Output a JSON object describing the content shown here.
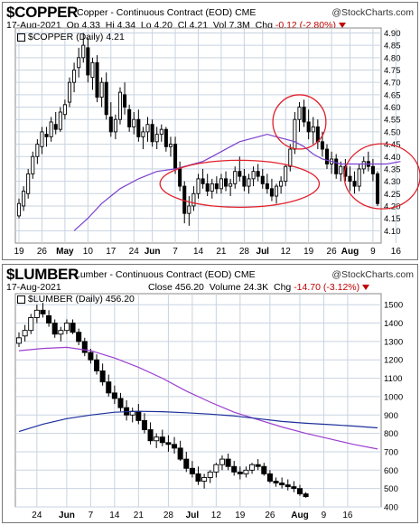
{
  "charts": [
    {
      "symbol": "$COPPER",
      "description": "Copper - Continuous Contract (EOD) CME",
      "watermark": "@StockCharts.com",
      "date": "17-Aug-2021",
      "open_label": "Op",
      "open": "4.33",
      "high_label": "Hi",
      "high": "4.34",
      "low_label": "Lo",
      "low": "4.20",
      "close_label": "Cl",
      "close": "4.21",
      "volume_label": "Vol",
      "volume": "7.3M",
      "change_label": "Chg",
      "change": "-0.12 (-2.80%)",
      "plot_title": "$COPPER (Daily) 4.21",
      "colors": {
        "up": "#000000",
        "down": "#000000",
        "ma50": "#7b3fd0",
        "circle": "#e0202a",
        "grid": "#c9d3e0"
      }
    },
    {
      "symbol": "$LUMBER",
      "description": "Lumber - Continuous Contract (EOD) CME",
      "watermark": "@StockCharts.com",
      "date": "17-Aug-2021",
      "close_label": "Close",
      "close": "456.20",
      "volume_label": "Volume",
      "volume": "24.3K",
      "change_label": "Chg",
      "change": "-14.70 (-3.12%)",
      "plot_title": "$LUMBER (Daily) 456.20",
      "colors": {
        "up": "#000000",
        "down": "#000000",
        "ma50": "#9a3fd0",
        "ma200": "#1c2f9a",
        "grid": "#c9d3e0"
      }
    }
  ],
  "chart_data": [
    {
      "type": "candlestick",
      "title": "$COPPER (Daily) 4.21",
      "ylim": [
        4.05,
        4.92
      ],
      "y_ticks": [
        "4.90",
        "4.85",
        "4.80",
        "4.75",
        "4.70",
        "4.65",
        "4.60",
        "4.55",
        "4.50",
        "4.45",
        "4.40",
        "4.35",
        "4.30",
        "4.25",
        "4.20",
        "4.15",
        "4.10"
      ],
      "x_ticks": [
        "19",
        "26",
        "May",
        "10",
        "17",
        "24",
        "Jun",
        "7",
        "14",
        "21",
        "28",
        "Jul",
        "12",
        "19",
        "26",
        "Aug",
        "9",
        "16"
      ],
      "x_tick_index": [
        0,
        5,
        10,
        15,
        20,
        25,
        29,
        34,
        39,
        44,
        49,
        53,
        58,
        63,
        68,
        72,
        77,
        82
      ],
      "candles": [
        [
          4.16,
          4.23,
          4.15,
          4.21
        ],
        [
          4.2,
          4.28,
          4.18,
          4.26
        ],
        [
          4.25,
          4.35,
          4.23,
          4.33
        ],
        [
          4.33,
          4.42,
          4.31,
          4.4
        ],
        [
          4.4,
          4.47,
          4.37,
          4.45
        ],
        [
          4.44,
          4.52,
          4.41,
          4.5
        ],
        [
          4.49,
          4.52,
          4.44,
          4.48
        ],
        [
          4.48,
          4.56,
          4.46,
          4.54
        ],
        [
          4.53,
          4.58,
          4.49,
          4.51
        ],
        [
          4.51,
          4.6,
          4.5,
          4.58
        ],
        [
          4.57,
          4.63,
          4.55,
          4.61
        ],
        [
          4.62,
          4.72,
          4.6,
          4.7
        ],
        [
          4.7,
          4.78,
          4.66,
          4.75
        ],
        [
          4.76,
          4.84,
          4.72,
          4.8
        ],
        [
          4.8,
          4.9,
          4.78,
          4.85
        ],
        [
          4.84,
          4.88,
          4.7,
          4.73
        ],
        [
          4.72,
          4.8,
          4.67,
          4.78
        ],
        [
          4.78,
          4.81,
          4.62,
          4.64
        ],
        [
          4.64,
          4.72,
          4.6,
          4.7
        ],
        [
          4.7,
          4.74,
          4.55,
          4.57
        ],
        [
          4.56,
          4.62,
          4.48,
          4.5
        ],
        [
          4.5,
          4.57,
          4.47,
          4.55
        ],
        [
          4.55,
          4.68,
          4.53,
          4.66
        ],
        [
          4.65,
          4.7,
          4.57,
          4.6
        ],
        [
          4.59,
          4.61,
          4.5,
          4.52
        ],
        [
          4.52,
          4.58,
          4.49,
          4.55
        ],
        [
          4.55,
          4.59,
          4.46,
          4.48
        ],
        [
          4.48,
          4.52,
          4.43,
          4.5
        ],
        [
          4.5,
          4.56,
          4.46,
          4.53
        ],
        [
          4.53,
          4.55,
          4.44,
          4.46
        ],
        [
          4.46,
          4.52,
          4.43,
          4.49
        ],
        [
          4.49,
          4.53,
          4.46,
          4.51
        ],
        [
          4.51,
          4.52,
          4.42,
          4.44
        ],
        [
          4.44,
          4.48,
          4.4,
          4.45
        ],
        [
          4.45,
          4.48,
          4.33,
          4.35
        ],
        [
          4.35,
          4.38,
          4.26,
          4.28
        ],
        [
          4.28,
          4.3,
          4.13,
          4.17
        ],
        [
          4.17,
          4.24,
          4.12,
          4.2
        ],
        [
          4.2,
          4.28,
          4.18,
          4.25
        ],
        [
          4.25,
          4.33,
          4.23,
          4.31
        ],
        [
          4.31,
          4.35,
          4.27,
          4.29
        ],
        [
          4.29,
          4.33,
          4.24,
          4.26
        ],
        [
          4.26,
          4.31,
          4.23,
          4.29
        ],
        [
          4.29,
          4.32,
          4.25,
          4.27
        ],
        [
          4.27,
          4.33,
          4.25,
          4.31
        ],
        [
          4.31,
          4.34,
          4.26,
          4.28
        ],
        [
          4.28,
          4.31,
          4.24,
          4.29
        ],
        [
          4.29,
          4.36,
          4.27,
          4.34
        ],
        [
          4.34,
          4.4,
          4.3,
          4.32
        ],
        [
          4.32,
          4.35,
          4.26,
          4.28
        ],
        [
          4.28,
          4.33,
          4.25,
          4.31
        ],
        [
          4.31,
          4.36,
          4.28,
          4.34
        ],
        [
          4.34,
          4.37,
          4.3,
          4.32
        ],
        [
          4.32,
          4.35,
          4.27,
          4.29
        ],
        [
          4.29,
          4.33,
          4.25,
          4.27
        ],
        [
          4.27,
          4.31,
          4.22,
          4.24
        ],
        [
          4.24,
          4.29,
          4.21,
          4.28
        ],
        [
          4.28,
          4.32,
          4.25,
          4.3
        ],
        [
          4.3,
          4.37,
          4.28,
          4.36
        ],
        [
          4.36,
          4.45,
          4.34,
          4.43
        ],
        [
          4.43,
          4.58,
          4.41,
          4.55
        ],
        [
          4.55,
          4.62,
          4.5,
          4.6
        ],
        [
          4.6,
          4.63,
          4.52,
          4.54
        ],
        [
          4.54,
          4.59,
          4.47,
          4.5
        ],
        [
          4.5,
          4.56,
          4.45,
          4.52
        ],
        [
          4.52,
          4.55,
          4.43,
          4.46
        ],
        [
          4.46,
          4.5,
          4.4,
          4.43
        ],
        [
          4.43,
          4.45,
          4.35,
          4.37
        ],
        [
          4.37,
          4.42,
          4.33,
          4.39
        ],
        [
          4.39,
          4.41,
          4.31,
          4.33
        ],
        [
          4.33,
          4.38,
          4.3,
          4.36
        ],
        [
          4.36,
          4.39,
          4.3,
          4.32
        ],
        [
          4.32,
          4.36,
          4.26,
          4.3
        ],
        [
          4.3,
          4.34,
          4.25,
          4.28
        ],
        [
          4.28,
          4.37,
          4.26,
          4.35
        ],
        [
          4.35,
          4.4,
          4.33,
          4.38
        ],
        [
          4.38,
          4.42,
          4.34,
          4.36
        ],
        [
          4.36,
          4.39,
          4.3,
          4.33
        ],
        [
          4.33,
          4.34,
          4.2,
          4.21
        ]
      ],
      "ma50": [
        [
          38,
          4.37
        ],
        [
          40,
          4.38
        ],
        [
          42,
          4.4
        ],
        [
          44,
          4.42
        ],
        [
          46,
          4.44
        ],
        [
          48,
          4.46
        ],
        [
          50,
          4.47
        ],
        [
          52,
          4.48
        ],
        [
          54,
          4.49
        ],
        [
          56,
          4.48
        ],
        [
          58,
          4.47
        ],
        [
          60,
          4.46
        ],
        [
          62,
          4.44
        ],
        [
          64,
          4.41
        ],
        [
          66,
          4.39
        ],
        [
          68,
          4.38
        ],
        [
          70,
          4.37
        ],
        [
          72,
          4.37
        ],
        [
          74,
          4.37
        ],
        [
          76,
          4.37
        ],
        [
          78,
          4.37
        ],
        [
          80,
          4.37
        ],
        [
          83,
          4.38
        ]
      ],
      "ma50_start_index": 37
    },
    {
      "type": "candlestick",
      "title": "$LUMBER (Daily) 456.20",
      "ylim": [
        400,
        1560
      ],
      "y_ticks": [
        "1500",
        "1400",
        "1300",
        "1200",
        "1100",
        "1000",
        "900",
        "800",
        "700",
        "600",
        "500",
        "400"
      ],
      "x_ticks": [
        "24",
        "Jun",
        "7",
        "14",
        "21",
        "28",
        "Jul",
        "12",
        "19",
        "26",
        "Aug",
        "9",
        "16"
      ],
      "x_tick_index": [
        3,
        8,
        12,
        16,
        20,
        25,
        29,
        33,
        37,
        42,
        47,
        51,
        55
      ],
      "candles": [
        [
          1290,
          1350,
          1270,
          1320
        ],
        [
          1330,
          1390,
          1300,
          1360
        ],
        [
          1360,
          1450,
          1340,
          1430
        ],
        [
          1430,
          1500,
          1400,
          1470
        ],
        [
          1470,
          1510,
          1430,
          1450
        ],
        [
          1440,
          1470,
          1380,
          1400
        ],
        [
          1400,
          1420,
          1320,
          1340
        ],
        [
          1340,
          1380,
          1300,
          1360
        ],
        [
          1360,
          1420,
          1340,
          1400
        ],
        [
          1400,
          1420,
          1340,
          1350
        ],
        [
          1350,
          1370,
          1280,
          1300
        ],
        [
          1300,
          1320,
          1220,
          1240
        ],
        [
          1240,
          1260,
          1180,
          1200
        ],
        [
          1200,
          1230,
          1120,
          1140
        ],
        [
          1140,
          1180,
          1060,
          1080
        ],
        [
          1080,
          1120,
          1000,
          1020
        ],
        [
          1020,
          1060,
          960,
          990
        ],
        [
          990,
          1020,
          920,
          940
        ],
        [
          940,
          980,
          870,
          900
        ],
        [
          900,
          940,
          860,
          920
        ],
        [
          920,
          960,
          850,
          870
        ],
        [
          870,
          910,
          800,
          820
        ],
        [
          820,
          860,
          740,
          760
        ],
        [
          760,
          800,
          720,
          780
        ],
        [
          780,
          820,
          730,
          750
        ],
        [
          750,
          790,
          700,
          740
        ],
        [
          740,
          780,
          690,
          720
        ],
        [
          720,
          760,
          650,
          660
        ],
        [
          660,
          700,
          590,
          610
        ],
        [
          610,
          650,
          560,
          580
        ],
        [
          580,
          620,
          520,
          540
        ],
        [
          540,
          580,
          500,
          560
        ],
        [
          560,
          600,
          530,
          590
        ],
        [
          590,
          640,
          560,
          630
        ],
        [
          630,
          680,
          600,
          660
        ],
        [
          660,
          690,
          600,
          620
        ],
        [
          620,
          650,
          570,
          590
        ],
        [
          590,
          620,
          550,
          580
        ],
        [
          580,
          620,
          560,
          600
        ],
        [
          600,
          640,
          580,
          630
        ],
        [
          630,
          660,
          600,
          620
        ],
        [
          620,
          640,
          570,
          580
        ],
        [
          580,
          600,
          530,
          540
        ],
        [
          540,
          560,
          510,
          530
        ],
        [
          530,
          560,
          500,
          520
        ],
        [
          520,
          550,
          490,
          510
        ],
        [
          510,
          540,
          480,
          500
        ],
        [
          500,
          520,
          460,
          471
        ],
        [
          471,
          480,
          450,
          456
        ]
      ],
      "ma50": [
        [
          0,
          1250
        ],
        [
          4,
          1262
        ],
        [
          8,
          1268
        ],
        [
          12,
          1250
        ],
        [
          16,
          1210
        ],
        [
          20,
          1160
        ],
        [
          24,
          1100
        ],
        [
          28,
          1030
        ],
        [
          32,
          970
        ],
        [
          36,
          915
        ],
        [
          40,
          875
        ],
        [
          44,
          835
        ],
        [
          48,
          800
        ],
        [
          52,
          770
        ],
        [
          56,
          740
        ],
        [
          60,
          715
        ]
      ],
      "ma200": [
        [
          0,
          810
        ],
        [
          4,
          850
        ],
        [
          8,
          880
        ],
        [
          12,
          900
        ],
        [
          16,
          915
        ],
        [
          20,
          920
        ],
        [
          24,
          918
        ],
        [
          28,
          912
        ],
        [
          32,
          905
        ],
        [
          36,
          895
        ],
        [
          40,
          880
        ],
        [
          44,
          865
        ],
        [
          48,
          855
        ],
        [
          52,
          848
        ],
        [
          56,
          840
        ],
        [
          60,
          830
        ]
      ]
    }
  ]
}
